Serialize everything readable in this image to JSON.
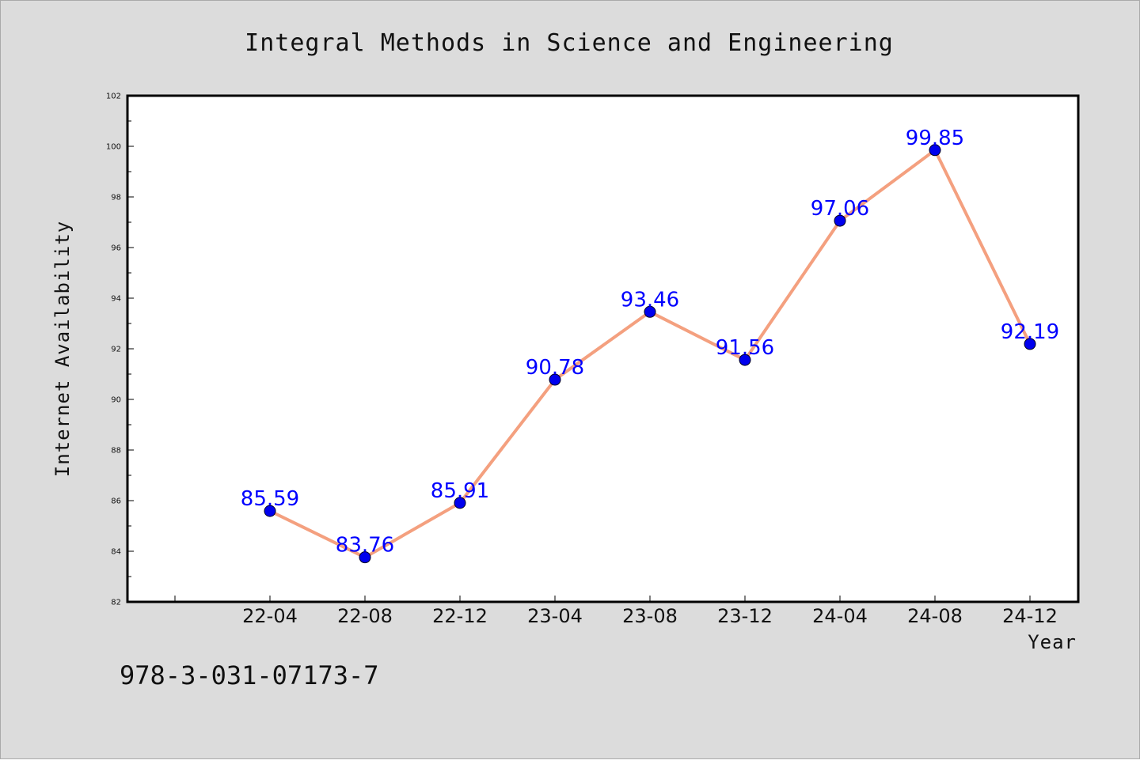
{
  "chart_data": {
    "type": "line",
    "title": "Integral Methods in Science and Engineering",
    "xlabel": "Year",
    "ylabel": "Internet Availability",
    "categories": [
      "22-04",
      "22-08",
      "22-12",
      "23-04",
      "23-08",
      "23-12",
      "24-04",
      "24-08",
      "24-12"
    ],
    "series": [
      {
        "values": [
          85.59,
          83.76,
          85.91,
          90.78,
          93.46,
          91.56,
          97.06,
          99.85,
          92.19
        ]
      }
    ],
    "data_labels": [
      "85.59",
      "83.76",
      "85.91",
      "90.78",
      "93.46",
      "91.56",
      "97.06",
      "99.85",
      "92.19"
    ],
    "ylim": [
      82,
      102
    ],
    "yticks": [
      82,
      84,
      86,
      88,
      90,
      92,
      94,
      96,
      98,
      100,
      102
    ],
    "grid": false,
    "legend": "none",
    "colors": {
      "line": "#f4a07f",
      "marker": "#0000ee",
      "label": "#0000ff",
      "figure_background": "#dcdcdc",
      "plot_background": "#ffffff"
    }
  },
  "footer": {
    "text": "978-3-031-07173-7"
  }
}
